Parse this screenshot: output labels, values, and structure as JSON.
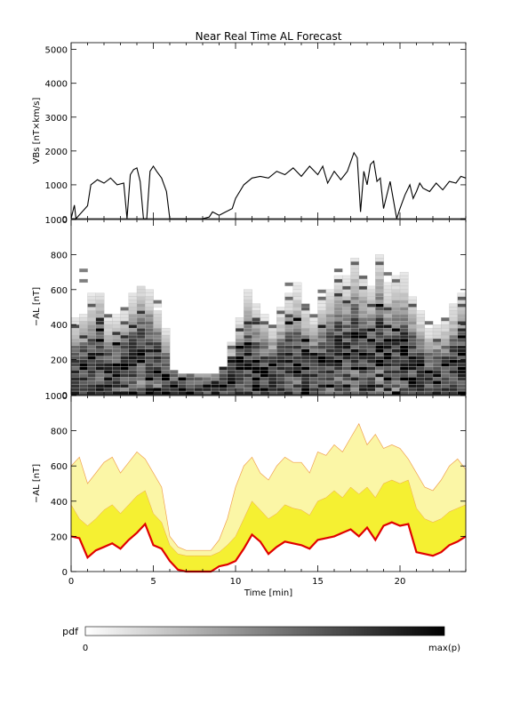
{
  "title": "Near Real Time AL Forecast",
  "x_axis": {
    "label": "Time [min]",
    "ticks": [
      0,
      5,
      10,
      15,
      20
    ],
    "range": [
      0,
      24
    ]
  },
  "panels": [
    {
      "ylabel": "VBs [nT×km/s]",
      "ylim": [
        0,
        5200
      ],
      "ticks": [
        0,
        1000,
        2000,
        3000,
        4000,
        5000
      ]
    },
    {
      "ylabel": "−AL [nT]",
      "ylim": [
        0,
        1000
      ],
      "ticks": [
        0,
        200,
        400,
        600,
        800,
        1000
      ]
    },
    {
      "ylabel": "−AL [nT]",
      "ylim": [
        0,
        1000
      ],
      "ticks": [
        0,
        200,
        400,
        600,
        800,
        1000
      ]
    }
  ],
  "colorbar": {
    "title": "pdf",
    "min_label": "0",
    "max_label": "max(p)"
  },
  "colors": {
    "line": "#000000",
    "forecast_line": "#e00000",
    "band_inner": "#f5f032",
    "band_outer": "#fbf6a6",
    "band_edge": "#f0a050"
  },
  "chart_data": [
    {
      "type": "line",
      "ylabel": "VBs [nT×km/s]",
      "xlim": [
        0,
        24
      ],
      "ylim": [
        0,
        5200
      ],
      "x": [
        0,
        0.2,
        0.3,
        1.0,
        1.2,
        1.6,
        2.0,
        2.4,
        2.8,
        3.2,
        3.4,
        3.6,
        3.8,
        4.0,
        4.2,
        4.4,
        4.6,
        4.8,
        5.0,
        5.2,
        5.5,
        5.8,
        6.0,
        7.0,
        8.0,
        8.4,
        8.6,
        9.0,
        9.4,
        9.8,
        10.0,
        10.5,
        11.0,
        11.5,
        12.0,
        12.5,
        13.0,
        13.5,
        14.0,
        14.5,
        15.0,
        15.3,
        15.6,
        16.0,
        16.4,
        16.8,
        17.2,
        17.4,
        17.6,
        17.8,
        18.0,
        18.2,
        18.4,
        18.6,
        18.8,
        19.0,
        19.4,
        19.8,
        20.0,
        20.3,
        20.6,
        20.8,
        21.0,
        21.2,
        21.4,
        21.8,
        22.2,
        22.6,
        23.0,
        23.4,
        23.7,
        24.0
      ],
      "values": [
        0,
        400,
        0,
        380,
        1000,
        1150,
        1050,
        1200,
        1000,
        1050,
        0,
        1300,
        1450,
        1500,
        1100,
        0,
        0,
        1400,
        1550,
        1400,
        1200,
        800,
        0,
        0,
        0,
        50,
        200,
        100,
        200,
        300,
        600,
        1000,
        1200,
        1250,
        1200,
        1400,
        1300,
        1500,
        1250,
        1550,
        1300,
        1550,
        1050,
        1400,
        1150,
        1400,
        1950,
        1800,
        200,
        1400,
        1000,
        1600,
        1700,
        1100,
        1200,
        300,
        1100,
        0,
        300,
        700,
        1000,
        600,
        800,
        1050,
        900,
        800,
        1050,
        850,
        1100,
        1050,
        1250,
        1200
      ]
    },
    {
      "type": "heatmap",
      "ylabel": "−AL [nT]",
      "xlim": [
        0,
        24
      ],
      "ylim": [
        0,
        1000
      ],
      "colorscale": "pdf: white (0) to black (max(p))",
      "x_centers": [
        0.25,
        0.75,
        1.25,
        1.75,
        2.25,
        2.75,
        3.25,
        3.75,
        4.25,
        4.75,
        5.25,
        5.75,
        6.25,
        6.75,
        7.25,
        7.75,
        8.25,
        8.75,
        9.25,
        9.75,
        10.25,
        10.75,
        11.25,
        11.75,
        12.25,
        12.75,
        13.25,
        13.75,
        14.25,
        14.75,
        15.25,
        15.75,
        16.25,
        16.75,
        17.25,
        17.75,
        18.25,
        18.75,
        19.25,
        19.75,
        20.25,
        20.75,
        21.25,
        21.75,
        22.25,
        22.75,
        23.25,
        23.75
      ],
      "peak_AL": [
        100,
        130,
        170,
        210,
        120,
        110,
        140,
        190,
        250,
        230,
        180,
        110,
        40,
        30,
        30,
        30,
        30,
        30,
        40,
        70,
        130,
        200,
        150,
        120,
        100,
        140,
        180,
        200,
        150,
        120,
        160,
        200,
        250,
        230,
        300,
        240,
        220,
        320,
        200,
        240,
        230,
        180,
        120,
        80,
        90,
        110,
        150,
        180
      ],
      "spread_AL": [
        160,
        160,
        180,
        180,
        150,
        150,
        160,
        180,
        180,
        170,
        150,
        120,
        80,
        70,
        70,
        70,
        70,
        70,
        80,
        110,
        150,
        180,
        170,
        150,
        140,
        160,
        180,
        190,
        170,
        150,
        170,
        190,
        210,
        200,
        220,
        210,
        200,
        220,
        200,
        200,
        210,
        180,
        160,
        140,
        140,
        150,
        170,
        180
      ],
      "max_AL": [
        650,
        720,
        600,
        580,
        520,
        480,
        560,
        610,
        650,
        620,
        560,
        480,
        140,
        120,
        120,
        120,
        120,
        120,
        150,
        300,
        520,
        640,
        600,
        560,
        460,
        600,
        650,
        640,
        600,
        480,
        600,
        650,
        720,
        700,
        880,
        760,
        620,
        820,
        700,
        700,
        720,
        600,
        520,
        420,
        460,
        520,
        560,
        580
      ]
    },
    {
      "type": "area",
      "ylabel": "−AL [nT]",
      "xlim": [
        0,
        24
      ],
      "ylim": [
        0,
        1000
      ],
      "x": [
        0,
        0.5,
        1,
        1.5,
        2,
        2.5,
        3,
        3.5,
        4,
        4.5,
        5,
        5.5,
        6,
        6.5,
        7,
        7.5,
        8,
        8.5,
        9,
        9.5,
        10,
        10.5,
        11,
        11.5,
        12,
        12.5,
        13,
        13.5,
        14,
        14.5,
        15,
        15.5,
        16,
        16.5,
        17,
        17.5,
        18,
        18.5,
        19,
        19.5,
        20,
        20.5,
        21,
        21.5,
        22,
        22.5,
        23,
        23.5,
        24
      ],
      "series": [
        {
          "name": "Forecast",
          "values": [
            200,
            190,
            80,
            120,
            140,
            160,
            130,
            180,
            220,
            270,
            150,
            130,
            60,
            10,
            0,
            0,
            0,
            0,
            30,
            40,
            60,
            130,
            210,
            170,
            100,
            140,
            170,
            160,
            150,
            130,
            180,
            190,
            200,
            220,
            240,
            200,
            250,
            180,
            260,
            280,
            260,
            270,
            110,
            100,
            90,
            110,
            150,
            170,
            200
          ]
        },
        {
          "name": "band_inner",
          "values": [
            380,
            300,
            260,
            300,
            350,
            380,
            330,
            380,
            430,
            460,
            330,
            280,
            150,
            100,
            90,
            90,
            90,
            90,
            110,
            150,
            200,
            300,
            400,
            350,
            300,
            330,
            380,
            360,
            350,
            320,
            400,
            420,
            460,
            420,
            480,
            440,
            480,
            420,
            500,
            520,
            500,
            520,
            360,
            300,
            280,
            300,
            340,
            360,
            380
          ]
        },
        {
          "name": "band_outer",
          "values": [
            600,
            650,
            500,
            560,
            620,
            650,
            560,
            620,
            680,
            640,
            560,
            480,
            200,
            140,
            120,
            120,
            120,
            120,
            180,
            300,
            480,
            600,
            650,
            560,
            520,
            600,
            650,
            620,
            620,
            560,
            680,
            660,
            720,
            680,
            760,
            840,
            720,
            780,
            700,
            720,
            700,
            640,
            560,
            480,
            460,
            520,
            600,
            640,
            580
          ]
        }
      ]
    }
  ]
}
